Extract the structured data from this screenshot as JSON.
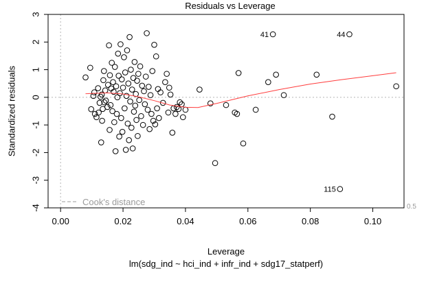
{
  "chart_data": {
    "type": "scatter",
    "title": "Residuals vs Leverage",
    "xlabel": "Leverage",
    "ylabel": "Standardized residuals",
    "subtitle": "lm(sdg_ind ~ hci_ind + infr_ind + sdg17_statperf)",
    "xlim": [
      -0.004,
      0.11
    ],
    "ylim": [
      -4,
      3
    ],
    "xticks": [
      {
        "value": 0,
        "label": "0.00"
      },
      {
        "value": 0.02,
        "label": "0.02"
      },
      {
        "value": 0.04,
        "label": "0.04"
      },
      {
        "value": 0.06,
        "label": "0.06"
      },
      {
        "value": 0.08,
        "label": "0.08"
      },
      {
        "value": 0.1,
        "label": "0.10"
      }
    ],
    "yticks": [
      {
        "value": -4,
        "label": "-4"
      },
      {
        "value": -3,
        "label": "-3"
      },
      {
        "value": -2,
        "label": "-2"
      },
      {
        "value": -1,
        "label": "-1"
      },
      {
        "value": 0,
        "label": "0"
      },
      {
        "value": 1,
        "label": "1"
      },
      {
        "value": 2,
        "label": "2"
      },
      {
        "value": 3,
        "label": "3"
      }
    ],
    "legend": {
      "label": "Cook's distance",
      "position": "bottom-left"
    },
    "cook_contour_label": "0.5",
    "reference_lines": {
      "h": 0,
      "v": 0
    },
    "points": [
      {
        "x": 0.008,
        "y": 0.72
      },
      {
        "x": 0.0095,
        "y": 1.07
      },
      {
        "x": 0.0098,
        "y": -0.43
      },
      {
        "x": 0.0105,
        "y": 0.05
      },
      {
        "x": 0.0108,
        "y": 0.18
      },
      {
        "x": 0.011,
        "y": -0.6
      },
      {
        "x": 0.0115,
        "y": -0.72
      },
      {
        "x": 0.012,
        "y": 0.33
      },
      {
        "x": 0.0122,
        "y": -0.55
      },
      {
        "x": 0.0125,
        "y": -0.2
      },
      {
        "x": 0.0128,
        "y": 0.02
      },
      {
        "x": 0.013,
        "y": -1.63
      },
      {
        "x": 0.0132,
        "y": 0.1
      },
      {
        "x": 0.0133,
        "y": -0.85
      },
      {
        "x": 0.0135,
        "y": -0.42
      },
      {
        "x": 0.0137,
        "y": 0.62
      },
      {
        "x": 0.0139,
        "y": 0.95
      },
      {
        "x": 0.014,
        "y": -0.18
      },
      {
        "x": 0.0143,
        "y": 0.25
      },
      {
        "x": 0.0145,
        "y": -0.12
      },
      {
        "x": 0.015,
        "y": -0.35
      },
      {
        "x": 0.0152,
        "y": 0.45
      },
      {
        "x": 0.0155,
        "y": 1.88
      },
      {
        "x": 0.0157,
        "y": -1.18
      },
      {
        "x": 0.0158,
        "y": 0.8
      },
      {
        "x": 0.016,
        "y": -0.28
      },
      {
        "x": 0.0162,
        "y": 0.32
      },
      {
        "x": 0.0164,
        "y": 1.25
      },
      {
        "x": 0.0166,
        "y": -0.5
      },
      {
        "x": 0.0168,
        "y": 0.55
      },
      {
        "x": 0.017,
        "y": 0.2
      },
      {
        "x": 0.0172,
        "y": -0.9
      },
      {
        "x": 0.0174,
        "y": 1.1
      },
      {
        "x": 0.0176,
        "y": -1.95
      },
      {
        "x": 0.0178,
        "y": 0.4
      },
      {
        "x": 0.018,
        "y": -0.6
      },
      {
        "x": 0.0182,
        "y": 0.0
      },
      {
        "x": 0.0184,
        "y": 1.58
      },
      {
        "x": 0.0186,
        "y": 0.78
      },
      {
        "x": 0.0188,
        "y": -1.42
      },
      {
        "x": 0.019,
        "y": 0.15
      },
      {
        "x": 0.0192,
        "y": 1.92
      },
      {
        "x": 0.0194,
        "y": -0.75
      },
      {
        "x": 0.0196,
        "y": 0.65
      },
      {
        "x": 0.0198,
        "y": -1.25
      },
      {
        "x": 0.02,
        "y": 0.35
      },
      {
        "x": 0.0203,
        "y": 1.45
      },
      {
        "x": 0.0205,
        "y": -0.4
      },
      {
        "x": 0.0207,
        "y": 0.9
      },
      {
        "x": 0.0209,
        "y": -1.9
      },
      {
        "x": 0.0211,
        "y": 0.05
      },
      {
        "x": 0.0213,
        "y": 1.7
      },
      {
        "x": 0.0215,
        "y": -0.95
      },
      {
        "x": 0.0217,
        "y": 0.5
      },
      {
        "x": 0.0219,
        "y": -1.55
      },
      {
        "x": 0.0221,
        "y": 2.18
      },
      {
        "x": 0.0223,
        "y": -0.15
      },
      {
        "x": 0.0225,
        "y": 1.0
      },
      {
        "x": 0.0227,
        "y": -1.1
      },
      {
        "x": 0.0229,
        "y": 0.28
      },
      {
        "x": 0.0231,
        "y": -1.85
      },
      {
        "x": 0.0233,
        "y": 0.7
      },
      {
        "x": 0.0235,
        "y": -0.52
      },
      {
        "x": 0.0237,
        "y": 1.28
      },
      {
        "x": 0.0239,
        "y": -0.3
      },
      {
        "x": 0.0241,
        "y": 0.12
      },
      {
        "x": 0.0243,
        "y": -0.82
      },
      {
        "x": 0.0245,
        "y": 0.6
      },
      {
        "x": 0.0247,
        "y": -1.4
      },
      {
        "x": 0.0249,
        "y": 0.85
      },
      {
        "x": 0.0252,
        "y": -0.1
      },
      {
        "x": 0.0255,
        "y": 1.12
      },
      {
        "x": 0.0258,
        "y": -0.68
      },
      {
        "x": 0.0261,
        "y": 0.42
      },
      {
        "x": 0.0264,
        "y": -1.0
      },
      {
        "x": 0.0267,
        "y": 0.22
      },
      {
        "x": 0.027,
        "y": -0.25
      },
      {
        "x": 0.0273,
        "y": 0.75
      },
      {
        "x": 0.0276,
        "y": 2.32
      },
      {
        "x": 0.0279,
        "y": -0.45
      },
      {
        "x": 0.0282,
        "y": 0.38
      },
      {
        "x": 0.0285,
        "y": -1.15
      },
      {
        "x": 0.0288,
        "y": 0.08
      },
      {
        "x": 0.0291,
        "y": -0.6
      },
      {
        "x": 0.0294,
        "y": 0.95
      },
      {
        "x": 0.0297,
        "y": -0.85
      },
      {
        "x": 0.03,
        "y": 1.9
      },
      {
        "x": 0.0303,
        "y": -0.98
      },
      {
        "x": 0.0306,
        "y": 1.48
      },
      {
        "x": 0.0309,
        "y": -0.4
      },
      {
        "x": 0.0312,
        "y": 0.3
      },
      {
        "x": 0.0315,
        "y": -0.75
      },
      {
        "x": 0.032,
        "y": 0.18
      },
      {
        "x": 0.0328,
        "y": -0.2
      },
      {
        "x": 0.0335,
        "y": 0.55
      },
      {
        "x": 0.034,
        "y": 0.85
      },
      {
        "x": 0.0345,
        "y": -0.55
      },
      {
        "x": 0.0348,
        "y": 0.35
      },
      {
        "x": 0.0352,
        "y": 0.1
      },
      {
        "x": 0.0358,
        "y": -1.28
      },
      {
        "x": 0.0362,
        "y": -0.4
      },
      {
        "x": 0.0368,
        "y": -0.6
      },
      {
        "x": 0.0372,
        "y": -0.35
      },
      {
        "x": 0.0378,
        "y": -0.42
      },
      {
        "x": 0.0382,
        "y": -0.18
      },
      {
        "x": 0.0388,
        "y": -0.25
      },
      {
        "x": 0.0392,
        "y": -0.72
      },
      {
        "x": 0.04,
        "y": -0.45
      },
      {
        "x": 0.0445,
        "y": 0.28
      },
      {
        "x": 0.048,
        "y": -0.22
      },
      {
        "x": 0.0495,
        "y": -2.38
      },
      {
        "x": 0.053,
        "y": -0.28
      },
      {
        "x": 0.0558,
        "y": -0.55
      },
      {
        "x": 0.0565,
        "y": -0.6
      },
      {
        "x": 0.057,
        "y": 0.88
      },
      {
        "x": 0.0585,
        "y": -1.67
      },
      {
        "x": 0.0625,
        "y": -0.45
      },
      {
        "x": 0.0665,
        "y": 0.55
      },
      {
        "x": 0.069,
        "y": 0.82
      },
      {
        "x": 0.0715,
        "y": 0.08
      },
      {
        "x": 0.082,
        "y": 0.82
      },
      {
        "x": 0.087,
        "y": -0.7
      },
      {
        "x": 0.1075,
        "y": 0.4
      },
      {
        "x": 0.068,
        "y": 2.28,
        "label": "41"
      },
      {
        "x": 0.0925,
        "y": 2.28,
        "label": "44"
      },
      {
        "x": 0.0895,
        "y": -3.32,
        "label": "115"
      }
    ],
    "smooth_line": [
      {
        "x": 0.008,
        "y": 0.13
      },
      {
        "x": 0.015,
        "y": 0.16
      },
      {
        "x": 0.02,
        "y": 0.12
      },
      {
        "x": 0.025,
        "y": 0.02
      },
      {
        "x": 0.03,
        "y": -0.12
      },
      {
        "x": 0.035,
        "y": -0.28
      },
      {
        "x": 0.04,
        "y": -0.36
      },
      {
        "x": 0.044,
        "y": -0.37
      },
      {
        "x": 0.05,
        "y": -0.22
      },
      {
        "x": 0.06,
        "y": 0.05
      },
      {
        "x": 0.07,
        "y": 0.28
      },
      {
        "x": 0.08,
        "y": 0.48
      },
      {
        "x": 0.09,
        "y": 0.64
      },
      {
        "x": 0.1,
        "y": 0.78
      },
      {
        "x": 0.1075,
        "y": 0.89
      }
    ]
  }
}
